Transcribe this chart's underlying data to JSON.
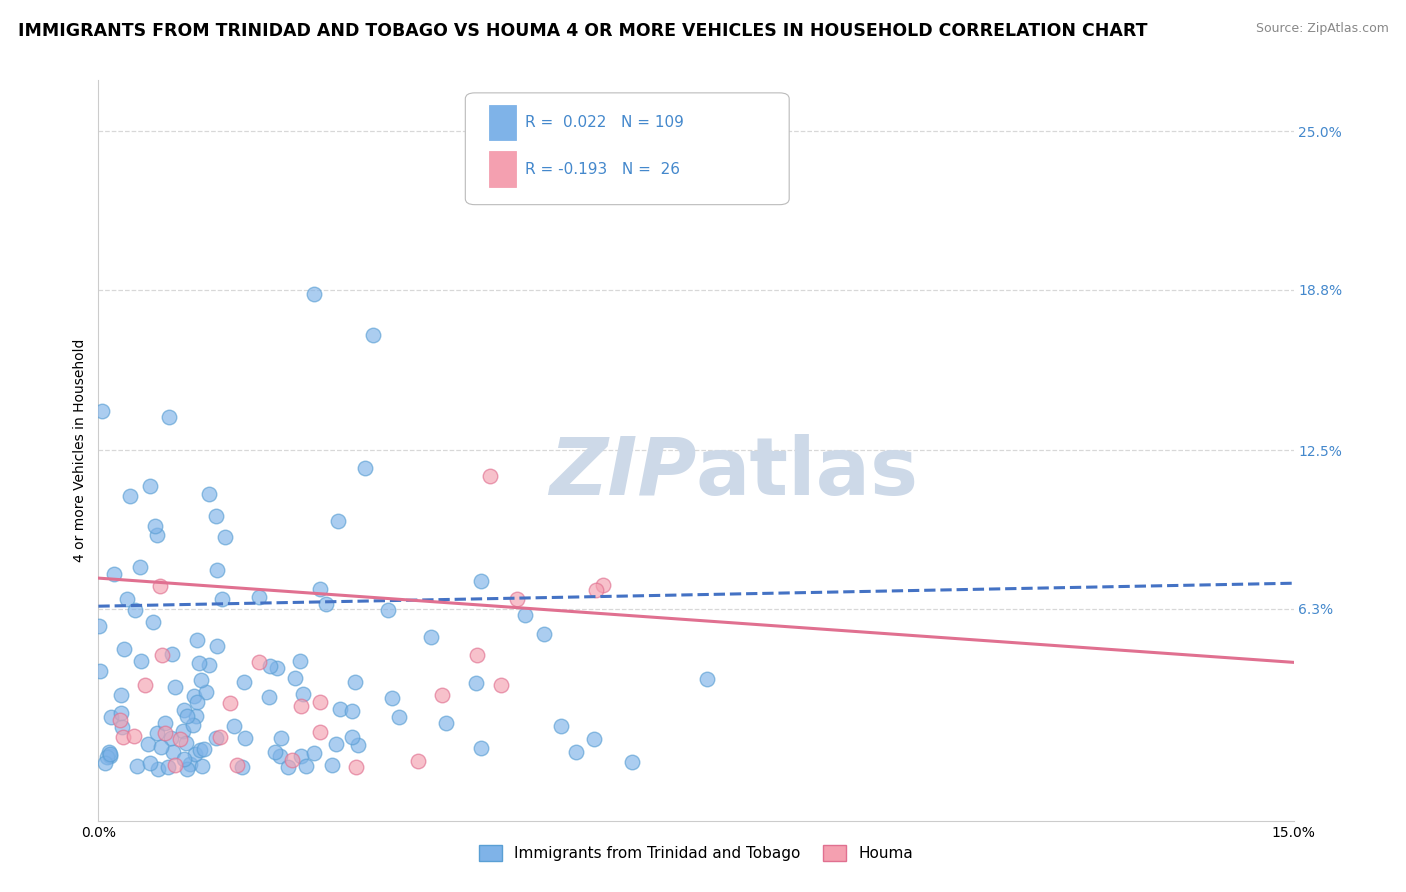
{
  "title": "IMMIGRANTS FROM TRINIDAD AND TOBAGO VS HOUMA 4 OR MORE VEHICLES IN HOUSEHOLD CORRELATION CHART",
  "source": "Source: ZipAtlas.com",
  "ylabel": "4 or more Vehicles in Household",
  "xlim": [
    0.0,
    0.15
  ],
  "ylim": [
    -0.02,
    0.27
  ],
  "xticklabels": [
    "0.0%",
    "15.0%"
  ],
  "ytick_positions": [
    0.063,
    0.125,
    0.188,
    0.25
  ],
  "ytick_labels": [
    "6.3%",
    "12.5%",
    "18.8%",
    "25.0%"
  ],
  "series1_label": "Immigrants from Trinidad and Tobago",
  "series1_color": "#7fb3e8",
  "series1_border": "#5a9fd4",
  "series1_R": 0.022,
  "series1_N": 109,
  "series2_label": "Houma",
  "series2_color": "#f4a0b0",
  "series2_border": "#e07090",
  "series2_R": -0.193,
  "series2_N": 26,
  "reg1_color": "#4472c4",
  "reg2_color": "#e07090",
  "watermark_color": "#cdd9e8",
  "grid_color": "#d8d8d8",
  "background_color": "#ffffff",
  "title_fontsize": 12.5,
  "source_fontsize": 9,
  "legend_fontsize": 11,
  "axis_label_fontsize": 10,
  "ytick_color": "#4488cc"
}
